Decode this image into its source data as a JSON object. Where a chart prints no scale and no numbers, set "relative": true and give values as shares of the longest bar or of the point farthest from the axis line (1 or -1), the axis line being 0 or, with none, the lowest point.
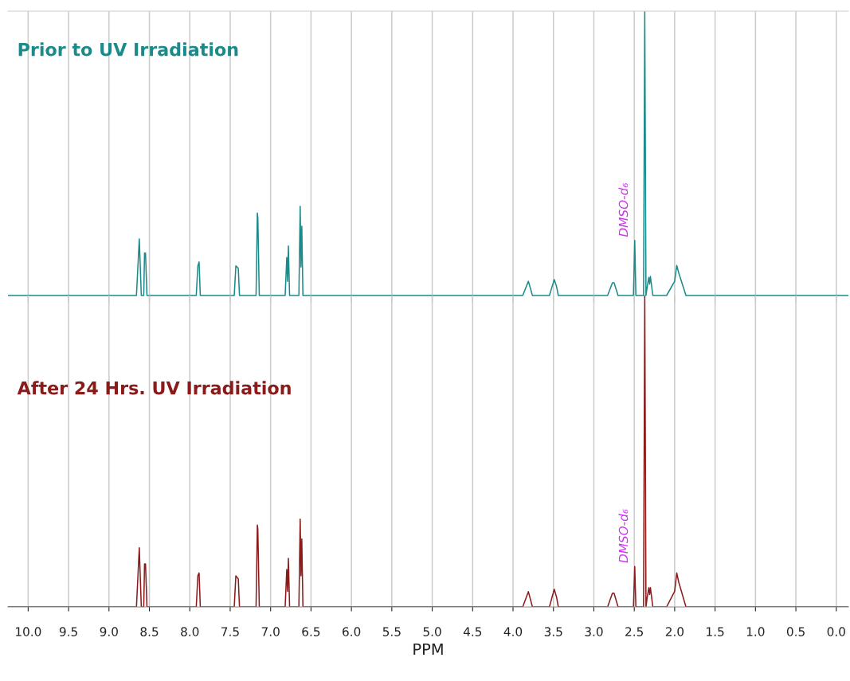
{
  "chart_data": [
    {
      "type": "line",
      "title": "Prior to UV Irradiation",
      "relative": true,
      "tick_labels": false,
      "grid": "x",
      "legend": false,
      "marker": "none",
      "line_style": "solid",
      "xlim": [
        10.25,
        -0.15
      ],
      "xticks": [
        10,
        9.5,
        9,
        8.5,
        8,
        7.5,
        7,
        6.5,
        6,
        5.5,
        5,
        4.5,
        4,
        3.5,
        3,
        2.5,
        2,
        1.5,
        1,
        0.5,
        0
      ],
      "annotations": [
        {
          "text": "DMSO-d₆",
          "x": 2.494,
          "y": 0.194
        }
      ],
      "series": [
        {
          "color": "#1a8a8a",
          "x": [
            10.25,
            8.66,
            8.625,
            8.6,
            8.57,
            8.56,
            8.548,
            8.53,
            7.92,
            7.9,
            7.885,
            7.87,
            7.45,
            7.43,
            7.415,
            7.4,
            7.385,
            7.18,
            7.164,
            7.158,
            7.14,
            6.82,
            6.8,
            6.79,
            6.78,
            6.765,
            6.65,
            6.634,
            6.624,
            6.614,
            6.6,
            3.88,
            3.81,
            3.76,
            3.55,
            3.49,
            3.46,
            3.44,
            2.83,
            2.77,
            2.75,
            2.7,
            2.51,
            2.494,
            2.48,
            2.385,
            2.37,
            2.355,
            2.34,
            2.32,
            2.31,
            2.3,
            2.27,
            2.1,
            2.0,
            1.974,
            1.95,
            1.86,
            -0.15
          ],
          "values": [
            0,
            0,
            0.199,
            0,
            0,
            0.149,
            0.149,
            0,
            0,
            0.104,
            0.118,
            0,
            0,
            0.104,
            0.1,
            0.095,
            0,
            0,
            0.29,
            0.275,
            0,
            0,
            0.134,
            0.05,
            0.174,
            0,
            0,
            0.314,
            0.1,
            0.244,
            0,
            0,
            0.05,
            0,
            0,
            0.056,
            0.03,
            0,
            0,
            0.045,
            0.045,
            0,
            0,
            0.194,
            0,
            0,
            1,
            0,
            0.03,
            0.064,
            0.04,
            0.067,
            0,
            0,
            0.05,
            0.106,
            0.08,
            0,
            0
          ]
        }
      ]
    },
    {
      "type": "line",
      "title": "After 24 Hrs. UV Irradiation",
      "relative": true,
      "tick_labels": "x",
      "grid": "x",
      "legend": false,
      "marker": "none",
      "line_style": "solid",
      "xlabel": "PPM",
      "xlim": [
        10.25,
        -0.15
      ],
      "xticks": [
        {
          "value": 10,
          "label": "10.0"
        },
        9.5,
        {
          "value": 9,
          "label": "9.0"
        },
        8.5,
        {
          "value": 8,
          "label": "8.0"
        },
        7.5,
        {
          "value": 7,
          "label": "7.0"
        },
        6.5,
        {
          "value": 6,
          "label": "6.0"
        },
        5.5,
        {
          "value": 5,
          "label": "5.0"
        },
        4.5,
        {
          "value": 4,
          "label": "4.0"
        },
        3.5,
        {
          "value": 3,
          "label": "3.0"
        },
        2.5,
        {
          "value": 2,
          "label": "2.0"
        },
        1.5,
        {
          "value": 1,
          "label": "1.0"
        },
        0.5,
        {
          "value": 0,
          "label": "0.0"
        }
      ],
      "annotations": [
        {
          "text": "DMSO-d₆",
          "x": 2.494,
          "y": 0.13
        }
      ],
      "series": [
        {
          "color": "#8b1a1a",
          "x": [
            10.25,
            8.66,
            8.625,
            8.6,
            8.57,
            8.56,
            8.548,
            8.53,
            7.92,
            7.9,
            7.885,
            7.87,
            7.45,
            7.43,
            7.415,
            7.4,
            7.385,
            7.18,
            7.164,
            7.158,
            7.14,
            6.82,
            6.8,
            6.79,
            6.78,
            6.765,
            6.65,
            6.634,
            6.624,
            6.614,
            6.6,
            3.88,
            3.81,
            3.76,
            3.55,
            3.49,
            3.46,
            3.44,
            2.83,
            2.77,
            2.75,
            2.7,
            2.51,
            2.494,
            2.48,
            2.385,
            2.37,
            2.355,
            2.34,
            2.32,
            2.31,
            2.3,
            2.27,
            2.1,
            2.0,
            1.974,
            1.95,
            1.86,
            -0.15
          ],
          "values": [
            0,
            0,
            0.19,
            0,
            0,
            0.138,
            0.138,
            0,
            0,
            0.1,
            0.109,
            0,
            0,
            0.1,
            0.095,
            0.09,
            0,
            0,
            0.263,
            0.25,
            0,
            0,
            0.12,
            0.05,
            0.156,
            0,
            0,
            0.282,
            0.1,
            0.218,
            0,
            0,
            0.049,
            0,
            0,
            0.057,
            0.03,
            0,
            0,
            0.044,
            0.044,
            0,
            0,
            0.13,
            0,
            0,
            1,
            0,
            0.03,
            0.062,
            0.04,
            0.062,
            0,
            0,
            0.05,
            0.109,
            0.08,
            0,
            0
          ]
        }
      ]
    }
  ]
}
